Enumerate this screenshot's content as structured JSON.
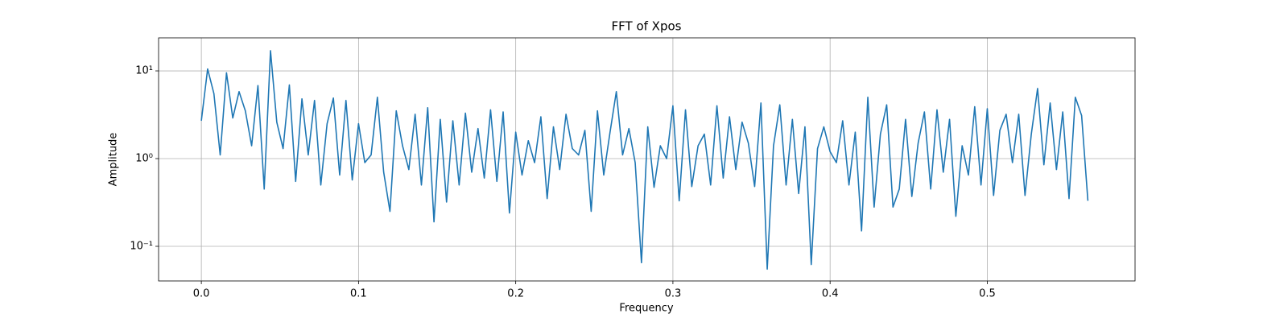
{
  "chart_data": {
    "type": "line",
    "title": "FFT of Xpos",
    "xlabel": "Frequency",
    "ylabel": "Amplitude",
    "x": [
      0,
      0.004,
      0.008,
      0.012,
      0.016,
      0.02,
      0.024,
      0.028,
      0.032,
      0.036,
      0.04,
      0.044,
      0.048,
      0.052,
      0.056,
      0.06,
      0.064,
      0.068,
      0.072,
      0.076,
      0.08,
      0.084,
      0.088,
      0.092,
      0.096,
      0.1,
      0.104,
      0.108,
      0.112,
      0.116,
      0.12,
      0.124,
      0.128,
      0.132,
      0.136,
      0.14,
      0.144,
      0.148,
      0.152,
      0.156,
      0.16,
      0.164,
      0.168,
      0.172,
      0.176,
      0.18,
      0.184,
      0.188,
      0.192,
      0.196,
      0.2,
      0.204,
      0.208,
      0.212,
      0.216,
      0.22,
      0.224,
      0.228,
      0.232,
      0.236,
      0.24,
      0.244,
      0.248,
      0.252,
      0.256,
      0.26,
      0.264,
      0.268,
      0.272,
      0.276,
      0.28,
      0.284,
      0.288,
      0.292,
      0.296,
      0.3,
      0.304,
      0.308,
      0.312,
      0.316,
      0.32,
      0.324,
      0.328,
      0.332,
      0.336,
      0.34,
      0.344,
      0.348,
      0.352,
      0.356,
      0.36,
      0.364,
      0.368,
      0.372,
      0.376,
      0.38,
      0.384,
      0.388,
      0.392,
      0.396,
      0.4,
      0.404,
      0.408,
      0.412,
      0.416,
      0.42,
      0.424,
      0.428,
      0.432,
      0.436,
      0.44,
      0.444,
      0.448,
      0.452,
      0.456,
      0.46,
      0.464,
      0.468,
      0.472,
      0.476,
      0.48,
      0.484,
      0.488,
      0.492,
      0.496,
      0.5,
      0.504,
      0.508,
      0.512,
      0.516,
      0.52,
      0.524,
      0.528,
      0.532,
      0.536,
      0.54,
      0.544,
      0.548,
      0.552,
      0.556,
      0.56,
      0.564
    ],
    "series": [
      {
        "color": "#1f77b4",
        "values": [
          2.7,
          10.5,
          5.5,
          1.1,
          9.5,
          2.9,
          5.8,
          3.5,
          1.4,
          6.8,
          0.45,
          17,
          2.6,
          1.3,
          6.9,
          0.55,
          4.8,
          1.1,
          4.6,
          0.5,
          2.5,
          4.9,
          0.65,
          4.6,
          0.57,
          2.5,
          0.9,
          1.1,
          5.0,
          0.7,
          0.25,
          3.5,
          1.4,
          0.75,
          3.2,
          0.5,
          3.8,
          0.19,
          2.8,
          0.32,
          2.7,
          0.5,
          3.3,
          0.7,
          2.2,
          0.6,
          3.6,
          0.55,
          3.4,
          0.24,
          2.0,
          0.65,
          1.6,
          0.9,
          3.0,
          0.35,
          2.3,
          0.75,
          3.2,
          1.3,
          1.1,
          2.1,
          0.25,
          3.5,
          0.65,
          2.0,
          5.8,
          1.1,
          2.2,
          0.9,
          0.065,
          2.3,
          0.47,
          1.4,
          1.0,
          4.0,
          0.33,
          3.6,
          0.48,
          1.4,
          1.9,
          0.5,
          4.0,
          0.6,
          3.0,
          0.75,
          2.6,
          1.5,
          0.48,
          4.3,
          0.055,
          1.4,
          4.1,
          0.5,
          2.8,
          0.4,
          2.3,
          0.062,
          1.3,
          2.3,
          1.2,
          0.9,
          2.7,
          0.5,
          2.0,
          0.15,
          5.0,
          0.28,
          1.9,
          4.1,
          0.28,
          0.45,
          2.8,
          0.37,
          1.5,
          3.4,
          0.45,
          3.6,
          0.7,
          2.8,
          0.22,
          1.4,
          0.65,
          3.9,
          0.5,
          3.7,
          0.38,
          2.1,
          3.2,
          0.9,
          3.2,
          0.38,
          1.9,
          6.3,
          0.85,
          4.3,
          0.75,
          3.4,
          0.35,
          5.0,
          3.1,
          0.33
        ]
      }
    ],
    "xlim": [
      -0.0272,
      0.594
    ],
    "ylim": [
      0.0403,
      23.8
    ],
    "log_y": true,
    "grid": true,
    "xticks": [
      {
        "value": 0,
        "label": "0.0"
      },
      0.1,
      0.2,
      0.3,
      0.4,
      0.5
    ],
    "yticks": [
      {
        "value": 0.1,
        "label": "10⁻¹"
      },
      {
        "value": 1,
        "label": "10⁰"
      },
      {
        "value": 10,
        "label": "10¹"
      }
    ]
  }
}
